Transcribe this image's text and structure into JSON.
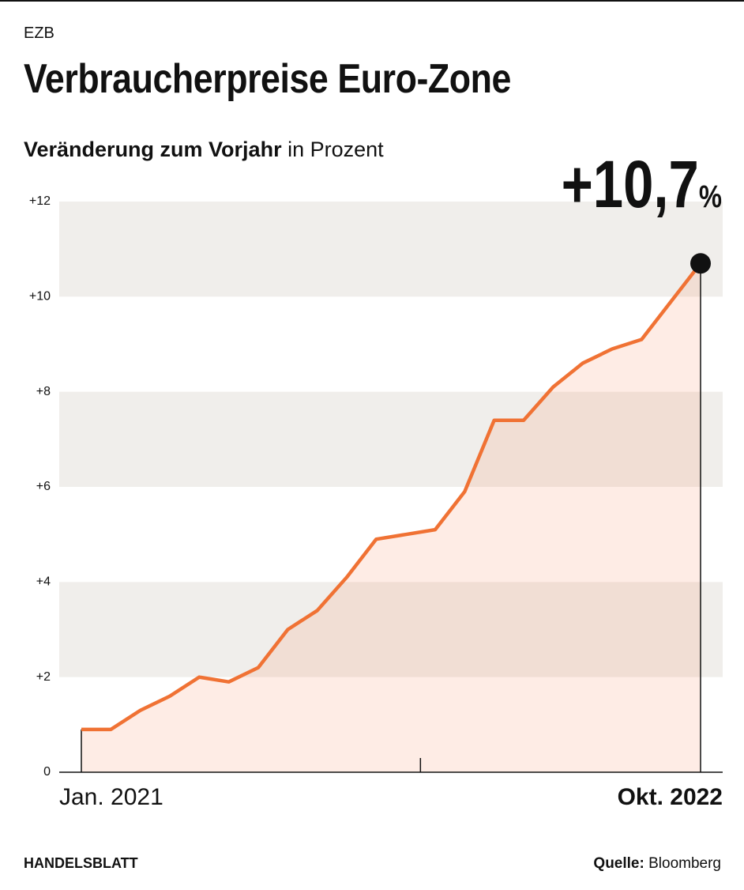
{
  "chart_data": {
    "type": "line",
    "source": "EZB",
    "title": "Verbraucherpreise Euro-Zone",
    "subtitle": {
      "bold": "Veränderung zum Vorjahr",
      "normal": "in Prozent"
    },
    "categories": [
      "Jan. 2021",
      null,
      null,
      null,
      null,
      null,
      null,
      null,
      null,
      null,
      null,
      null,
      null,
      null,
      null,
      null,
      null,
      null,
      null,
      null,
      null,
      "Okt. 2022"
    ],
    "series": [
      {
        "name": "Verbraucherpreise",
        "color": "#f07234",
        "values": [
          0.9,
          0.9,
          1.3,
          1.6,
          2.0,
          1.9,
          2.2,
          3.0,
          3.4,
          4.1,
          4.9,
          5.0,
          5.1,
          5.9,
          7.4,
          7.4,
          8.1,
          8.6,
          8.9,
          9.1,
          9.9,
          10.7
        ],
        "value_labels": [
          null,
          null,
          null,
          null,
          null,
          null,
          null,
          null,
          null,
          null,
          null,
          null,
          null,
          null,
          null,
          null,
          null,
          null,
          null,
          null,
          null,
          "+10,7%"
        ]
      }
    ],
    "ylim": [
      0,
      12
    ],
    "yticks": [
      0,
      {
        "value": 2,
        "label": "+2"
      },
      {
        "value": 4,
        "label": "+4"
      },
      {
        "value": 6,
        "label": "+6"
      },
      {
        "value": 8,
        "label": "+8"
      },
      {
        "value": 10,
        "label": "+10"
      },
      {
        "value": 12,
        "label": "+12"
      }
    ],
    "bands": true,
    "band_color": "#f0eeeb",
    "footer": {
      "brand": "HANDELSBLATT",
      "source_label": "Quelle:",
      "source": "Bloomberg"
    }
  }
}
